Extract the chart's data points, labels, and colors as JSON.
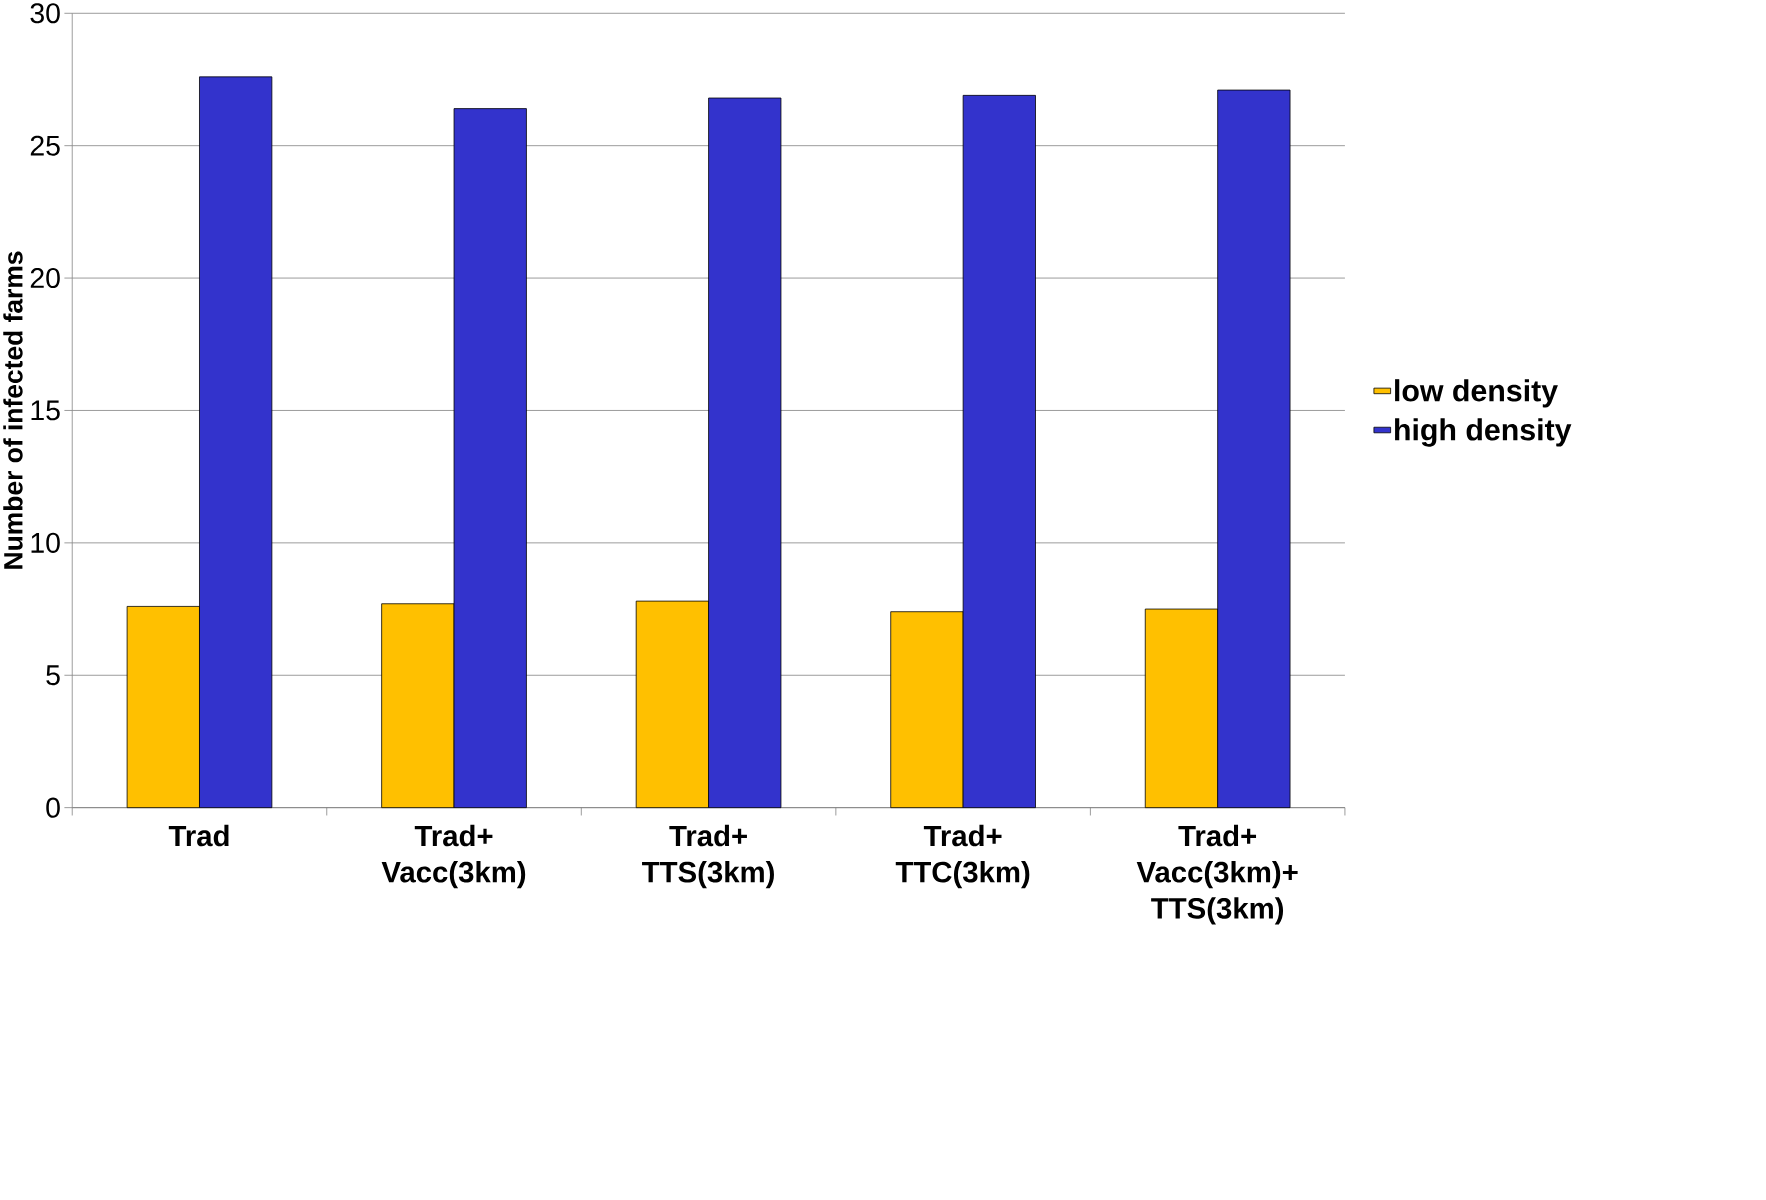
{
  "chart_data": {
    "type": "bar",
    "ylabel": "Number of infected farms",
    "categories": [
      "Trad",
      "Trad+ Vacc(3km)",
      "Trad+ TTS(3km)",
      "Trad+ TTC(3km)",
      "Trad+ Vacc(3km)+ TTS(3km)"
    ],
    "series": [
      {
        "name": "low density",
        "color": "#ffc000",
        "values": [
          7.6,
          7.7,
          7.8,
          7.4,
          7.5
        ]
      },
      {
        "name": "high density",
        "color": "#3333cc",
        "values": [
          27.6,
          26.4,
          26.8,
          26.9,
          27.1
        ]
      }
    ],
    "ylim": [
      0,
      30
    ],
    "yticks": [
      0,
      5,
      10,
      15,
      20,
      25,
      30
    ],
    "grid": "y",
    "legend": "right"
  }
}
